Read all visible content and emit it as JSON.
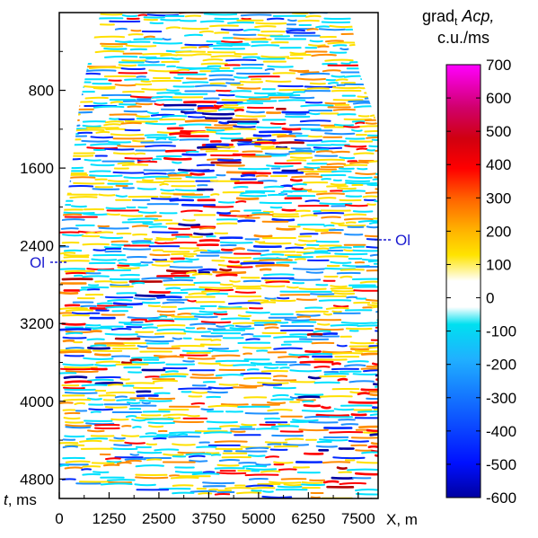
{
  "chart_data": {
    "type": "heatmap",
    "title": "",
    "xlabel": "X, m",
    "ylabel": "t, ms",
    "x_ticks": [
      0,
      1250,
      2500,
      3750,
      5000,
      6250,
      7500
    ],
    "y_ticks": [
      800,
      1600,
      2400,
      3200,
      4000,
      4800
    ],
    "x_range": [
      0,
      8000
    ],
    "y_range": [
      0,
      5000
    ],
    "y_inverted": true,
    "grid": false,
    "legend": "colorbar-right",
    "colorbar": {
      "title_main": "grad",
      "title_sub": "t",
      "title_var": "Acp,",
      "title_unit": "c.u./ms",
      "ticks": [
        700,
        600,
        500,
        400,
        300,
        200,
        100,
        0,
        -100,
        -200,
        -300,
        -400,
        -500,
        -600
      ],
      "range": [
        -600,
        700
      ]
    },
    "annotations": {
      "horizon_left": "Ol",
      "horizon_right": "Ol",
      "horizon_left_t": 2550,
      "horizon_right_t": 2300
    },
    "palette": [
      "#0000a0",
      "#0028ff",
      "#1e90ff",
      "#00e0ff",
      "#ffffff",
      "#ffe000",
      "#ff8c00",
      "#ff0000",
      "#b40000",
      "#ff00ff"
    ]
  }
}
